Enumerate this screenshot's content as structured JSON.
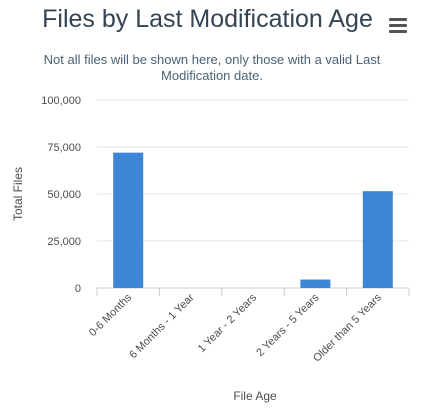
{
  "chart_data": {
    "type": "bar",
    "title": "Files by Last Modification Age",
    "subtitle": "Not all files will be shown here, only those with a valid Last Modification date.",
    "xlabel": "File Age",
    "ylabel": "Total Files",
    "categories": [
      "0-6 Months",
      "6 Months - 1 Year",
      "1 Year - 2 Years",
      "2 Years - 5 Years",
      "Older than 5 Years"
    ],
    "values": [
      72000,
      0,
      0,
      4500,
      51500
    ],
    "ylim": [
      0,
      100000
    ],
    "yticks": [
      "0",
      "25,000",
      "50,000",
      "75,000",
      "100,000"
    ],
    "bar_color": "#3d85d6",
    "grid": true,
    "legend": "none"
  },
  "menu": {
    "icon": "hamburger-menu-icon"
  }
}
